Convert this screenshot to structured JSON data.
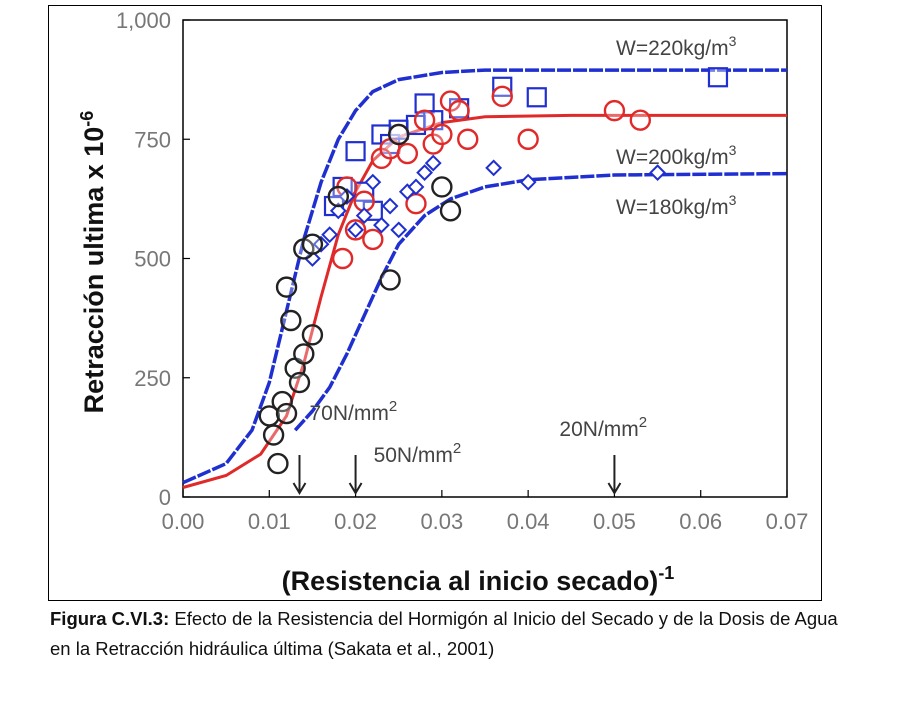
{
  "chart_data": {
    "type": "scatter",
    "ylabel": "Retracción ultima x 10",
    "ylabel_exp": "-6",
    "xlabel": "(Resistencia al inicio secado)",
    "xlabel_exp": "-1",
    "xlim": [
      0,
      0.07
    ],
    "ylim": [
      0,
      1000
    ],
    "x_ticks": [
      "0.00",
      "0.01",
      "0.02",
      "0.03",
      "0.04",
      "0.05",
      "0.06",
      "0.07"
    ],
    "y_ticks": [
      "0",
      "250",
      "500",
      "750",
      "1,000"
    ],
    "series": [
      {
        "name": "W=220kg/m",
        "name_exp": "3",
        "marker": "square",
        "color": "#1f2fd0",
        "points": [
          [
            0.0175,
            610
          ],
          [
            0.0185,
            650
          ],
          [
            0.02,
            725
          ],
          [
            0.021,
            640
          ],
          [
            0.022,
            600
          ],
          [
            0.023,
            760
          ],
          [
            0.024,
            740
          ],
          [
            0.025,
            770
          ],
          [
            0.027,
            780
          ],
          [
            0.028,
            825
          ],
          [
            0.029,
            790
          ],
          [
            0.032,
            815
          ],
          [
            0.037,
            860
          ],
          [
            0.041,
            838
          ],
          [
            0.062,
            880
          ]
        ],
        "curve": [
          [
            0.0,
            30
          ],
          [
            0.005,
            70
          ],
          [
            0.008,
            140
          ],
          [
            0.01,
            240
          ],
          [
            0.012,
            390
          ],
          [
            0.014,
            540
          ],
          [
            0.016,
            660
          ],
          [
            0.018,
            750
          ],
          [
            0.02,
            810
          ],
          [
            0.022,
            850
          ],
          [
            0.025,
            875
          ],
          [
            0.03,
            890
          ],
          [
            0.035,
            895
          ],
          [
            0.07,
            895
          ]
        ]
      },
      {
        "name": "W=200kg/m",
        "name_exp": "3",
        "marker": "circle",
        "color": "#e02a2a",
        "points": [
          [
            0.0185,
            500
          ],
          [
            0.019,
            650
          ],
          [
            0.02,
            560
          ],
          [
            0.021,
            620
          ],
          [
            0.022,
            540
          ],
          [
            0.023,
            710
          ],
          [
            0.024,
            730
          ],
          [
            0.025,
            760
          ],
          [
            0.026,
            720
          ],
          [
            0.027,
            615
          ],
          [
            0.028,
            790
          ],
          [
            0.029,
            740
          ],
          [
            0.03,
            760
          ],
          [
            0.031,
            830
          ],
          [
            0.032,
            810
          ],
          [
            0.033,
            750
          ],
          [
            0.037,
            840
          ],
          [
            0.04,
            750
          ],
          [
            0.05,
            810
          ],
          [
            0.053,
            790
          ]
        ],
        "curve": [
          [
            0.0,
            20
          ],
          [
            0.005,
            45
          ],
          [
            0.009,
            90
          ],
          [
            0.012,
            170
          ],
          [
            0.014,
            280
          ],
          [
            0.016,
            420
          ],
          [
            0.018,
            550
          ],
          [
            0.02,
            640
          ],
          [
            0.022,
            705
          ],
          [
            0.025,
            755
          ],
          [
            0.03,
            785
          ],
          [
            0.035,
            797
          ],
          [
            0.045,
            800
          ],
          [
            0.07,
            800
          ]
        ]
      },
      {
        "name": "W=180kg/m",
        "name_exp": "3",
        "marker": "diamond",
        "color": "#1f2fd0",
        "points": [
          [
            0.015,
            500
          ],
          [
            0.016,
            530
          ],
          [
            0.017,
            550
          ],
          [
            0.018,
            600
          ],
          [
            0.019,
            630
          ],
          [
            0.02,
            560
          ],
          [
            0.021,
            590
          ],
          [
            0.022,
            660
          ],
          [
            0.023,
            570
          ],
          [
            0.024,
            610
          ],
          [
            0.025,
            560
          ],
          [
            0.026,
            640
          ],
          [
            0.027,
            650
          ],
          [
            0.028,
            680
          ],
          [
            0.029,
            700
          ],
          [
            0.036,
            690
          ],
          [
            0.04,
            660
          ],
          [
            0.055,
            680
          ]
        ],
        "curve": [
          [
            0.013,
            140
          ],
          [
            0.015,
            180
          ],
          [
            0.017,
            230
          ],
          [
            0.019,
            300
          ],
          [
            0.021,
            380
          ],
          [
            0.023,
            460
          ],
          [
            0.025,
            530
          ],
          [
            0.028,
            590
          ],
          [
            0.031,
            625
          ],
          [
            0.035,
            650
          ],
          [
            0.04,
            665
          ],
          [
            0.05,
            675
          ],
          [
            0.07,
            678
          ]
        ]
      },
      {
        "name": "",
        "marker": "circle",
        "color": "#222222",
        "points": [
          [
            0.01,
            170
          ],
          [
            0.0105,
            130
          ],
          [
            0.011,
            70
          ],
          [
            0.0115,
            200
          ],
          [
            0.012,
            175
          ],
          [
            0.012,
            440
          ],
          [
            0.0125,
            370
          ],
          [
            0.013,
            270
          ],
          [
            0.0135,
            240
          ],
          [
            0.014,
            300
          ],
          [
            0.014,
            520
          ],
          [
            0.015,
            340
          ],
          [
            0.015,
            530
          ],
          [
            0.018,
            630
          ],
          [
            0.024,
            455
          ],
          [
            0.025,
            760
          ],
          [
            0.03,
            650
          ],
          [
            0.031,
            600
          ]
        ]
      }
    ],
    "annotations": [
      {
        "text": "70N/mm",
        "exp": "2",
        "x": 0.0135
      },
      {
        "text": "50N/mm",
        "exp": "2",
        "x": 0.02
      },
      {
        "text": "20N/mm",
        "exp": "2",
        "x": 0.05
      }
    ]
  },
  "caption": {
    "label": "Figura C.VI.3:",
    "text": " Efecto de la Resistencia del Hormigón al Inicio del Secado y de la Dosis de Agua en la Retracción hidráulica última (Sakata et al., 2001)"
  }
}
